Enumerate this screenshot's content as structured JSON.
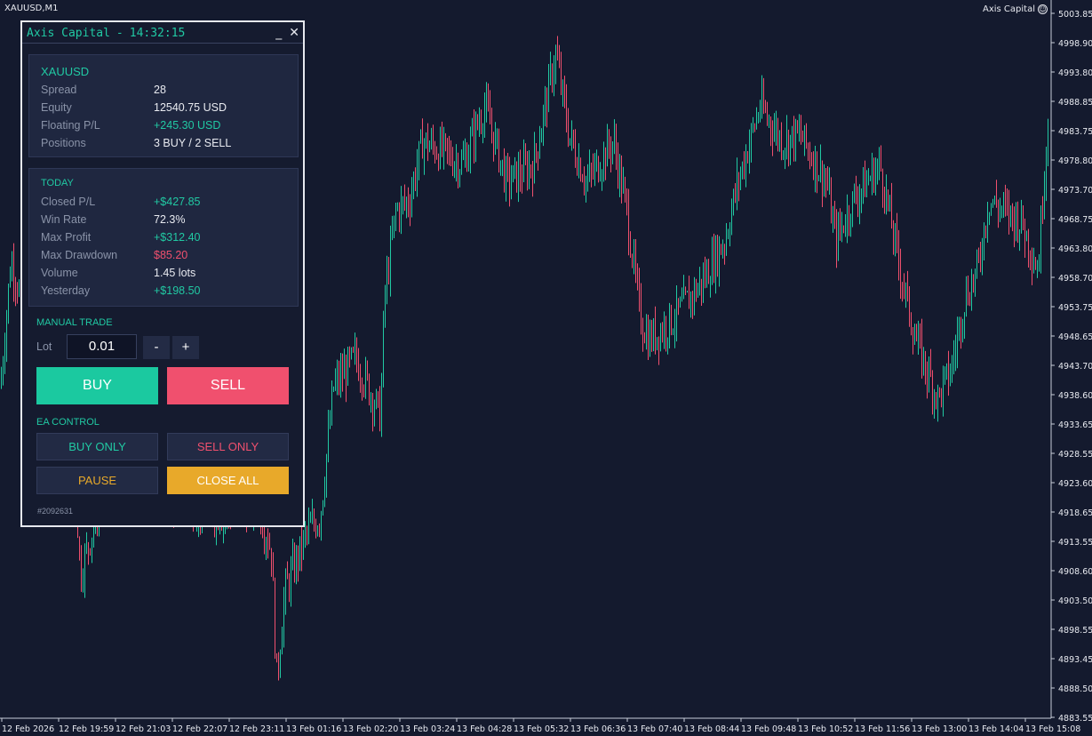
{
  "chart": {
    "symbol_label": "XAUUSD,M1",
    "ea_name": "Axis Capital",
    "price_labels": [
      "5003.85",
      "4998.90",
      "4993.80",
      "4988.85",
      "4983.75",
      "4978.80",
      "4973.70",
      "4968.75",
      "4963.80",
      "4958.70",
      "4953.75",
      "4948.65",
      "4943.70",
      "4938.60",
      "4933.65",
      "4928.55",
      "4923.60",
      "4918.65",
      "4913.55",
      "4908.60",
      "4903.50",
      "4898.55",
      "4893.45",
      "4888.50",
      "4883.55"
    ],
    "time_labels": [
      "12 Feb 2026",
      "12 Feb 19:59",
      "12 Feb 21:03",
      "12 Feb 22:07",
      "12 Feb 23:11",
      "13 Feb 01:16",
      "13 Feb 02:20",
      "13 Feb 03:24",
      "13 Feb 04:28",
      "13 Feb 05:32",
      "13 Feb 06:36",
      "13 Feb 07:40",
      "13 Feb 08:44",
      "13 Feb 09:48",
      "13 Feb 10:52",
      "13 Feb 11:56",
      "13 Feb 13:00",
      "13 Feb 14:04",
      "13 Feb 15:08"
    ],
    "colors": {
      "background": "#141a2e",
      "bull": "#21c9a3",
      "bear": "#f0506e",
      "text": "#e8eaf0"
    }
  },
  "panel": {
    "title": "Axis Capital",
    "title_sep": "-",
    "clock": "14:32:15",
    "minimize_icon": "_",
    "close_icon": "✕",
    "info": {
      "symbol": "XAUUSD",
      "rows": [
        {
          "label": "Spread",
          "value": "28"
        },
        {
          "label": "Equity",
          "value": "12540.75 USD"
        },
        {
          "label": "Floating P/L",
          "value": "+245.30 USD"
        },
        {
          "label": "Positions",
          "value": "3 BUY  /  2 SELL"
        }
      ]
    },
    "today": {
      "heading": "TODAY",
      "rows": [
        {
          "label": "Closed P/L",
          "value": "+$427.85"
        },
        {
          "label": "Win Rate",
          "value": "72.3%"
        },
        {
          "label": "Max Profit",
          "value": "+$312.40"
        },
        {
          "label": "Max Drawdown",
          "value": "$85.20"
        },
        {
          "label": "Volume",
          "value": "1.45 lots"
        },
        {
          "label": "Yesterday",
          "value": "+$198.50"
        }
      ]
    },
    "manual_trade": {
      "heading": "MANUAL TRADE",
      "lot_label": "Lot",
      "lot_value": "0.01",
      "minus": "-",
      "plus": "+",
      "buy": "BUY",
      "sell": "SELL"
    },
    "ea_control": {
      "heading": "EA CONTROL",
      "buy_only": "BUY ONLY",
      "sell_only": "SELL ONLY",
      "pause": "PAUSE",
      "close_all": "CLOSE ALL"
    },
    "account_id": "#2092631",
    "colors": {
      "accent": "#21c9a3",
      "sell": "#f0506e",
      "close_all": "#e8a92a",
      "pause_text": "#e8a92a"
    }
  }
}
